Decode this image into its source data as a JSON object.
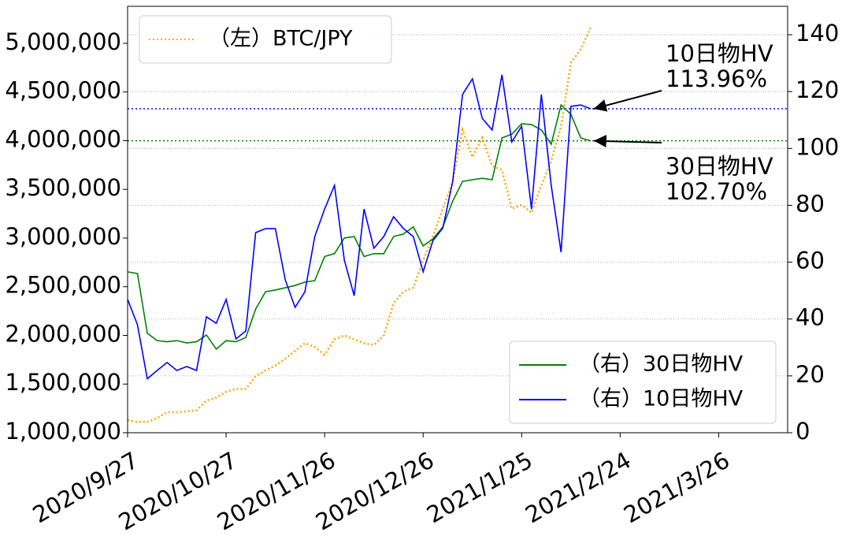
{
  "chart_data": {
    "type": "line",
    "x": [
      "2020/9/27",
      "2020/9/30",
      "2020/10/3",
      "2020/10/6",
      "2020/10/9",
      "2020/10/12",
      "2020/10/15",
      "2020/10/18",
      "2020/10/21",
      "2020/10/24",
      "2020/10/27",
      "2020/10/30",
      "2020/11/2",
      "2020/11/5",
      "2020/11/8",
      "2020/11/11",
      "2020/11/14",
      "2020/11/17",
      "2020/11/20",
      "2020/11/23",
      "2020/11/26",
      "2020/11/29",
      "2020/12/2",
      "2020/12/5",
      "2020/12/8",
      "2020/12/11",
      "2020/12/14",
      "2020/12/17",
      "2020/12/20",
      "2020/12/23",
      "2020/12/26",
      "2020/12/29",
      "2021/1/1",
      "2021/1/4",
      "2021/1/7",
      "2021/1/10",
      "2021/1/13",
      "2021/1/16",
      "2021/1/19",
      "2021/1/22",
      "2021/1/25",
      "2021/1/28",
      "2021/1/31",
      "2021/2/3",
      "2021/2/6",
      "2021/2/9",
      "2021/2/12",
      "2021/2/15"
    ],
    "series": [
      {
        "name": "（左）BTC/JPY",
        "color": "#ffa500",
        "style": "dotted",
        "axis": "y",
        "values": [
          1130000,
          1110000,
          1110000,
          1150000,
          1210000,
          1210000,
          1220000,
          1230000,
          1330000,
          1360000,
          1420000,
          1450000,
          1450000,
          1580000,
          1640000,
          1690000,
          1760000,
          1840000,
          1920000,
          1880000,
          1800000,
          1960000,
          2000000,
          1960000,
          1920000,
          1900000,
          2000000,
          2330000,
          2450000,
          2490000,
          2770000,
          3020000,
          3300000,
          3580000,
          4110000,
          3830000,
          4030000,
          3740000,
          3700000,
          3300000,
          3340000,
          3260000,
          3540000,
          3790000,
          4150000,
          4800000,
          4940000,
          5160000
        ]
      },
      {
        "name": "（右）30日物HV",
        "color": "#008000",
        "style": "solid",
        "axis": "y2",
        "values": [
          56.6,
          56,
          35,
          32.4,
          32,
          32.4,
          31.6,
          32,
          34.4,
          29.4,
          32.4,
          32,
          33.5,
          43.5,
          49.6,
          50.2,
          51,
          51.8,
          53,
          53.5,
          62,
          63,
          68.5,
          69,
          62,
          63,
          63,
          69,
          69.9,
          72.4,
          65.7,
          68.2,
          72.4,
          81.5,
          88.4,
          89,
          89.5,
          89,
          103.7,
          105,
          108.7,
          108.4,
          106.5,
          101.5,
          115.3,
          112,
          103.7,
          102.7
        ]
      },
      {
        "name": "（右）10日物HV",
        "color": "#0000ff",
        "style": "solid",
        "axis": "y2",
        "values": [
          46.9,
          38,
          19,
          21.9,
          24.7,
          21.9,
          23.3,
          21.9,
          40.8,
          38.5,
          46.9,
          33,
          35.8,
          70.4,
          71.8,
          71.8,
          53.8,
          44.1,
          49.6,
          69,
          78.7,
          87,
          60.7,
          48.2,
          78.7,
          64.9,
          69,
          76,
          71.8,
          69,
          56.6,
          67.6,
          72,
          88.4,
          119,
          124.5,
          110.6,
          106.5,
          125.9,
          102.3,
          107.8,
          78.7,
          119,
          87,
          63.5,
          114.8,
          115.3,
          113.96
        ]
      }
    ],
    "reference_lines": [
      {
        "value": 113.96,
        "color": "#0000ff",
        "axis": "y2"
      },
      {
        "value": 102.7,
        "color": "#008000",
        "axis": "y2"
      }
    ],
    "annotations": [
      {
        "lines": [
          "10日物HV",
          "113.96%"
        ],
        "series": 2
      },
      {
        "lines": [
          "30日物HV",
          "102.70%"
        ],
        "series": 1
      }
    ],
    "xlim": [
      "2020/9/27",
      "2021/4/16"
    ],
    "xticks": [
      "2020/9/27",
      "2020/10/27",
      "2020/11/26",
      "2020/12/26",
      "2021/1/25",
      "2021/2/24",
      "2021/3/26"
    ],
    "ylim": [
      1000000,
      5380000
    ],
    "yticks": [
      {
        "value": 1000000,
        "label": "1,000,000"
      },
      {
        "value": 1500000,
        "label": "1,500,000"
      },
      {
        "value": 2000000,
        "label": "2,000,000"
      },
      {
        "value": 2500000,
        "label": "2,500,000"
      },
      {
        "value": 3000000,
        "label": "3,000,000"
      },
      {
        "value": 3500000,
        "label": "3,500,000"
      },
      {
        "value": 4000000,
        "label": "4,000,000"
      },
      {
        "value": 4500000,
        "label": "4,500,000"
      },
      {
        "value": 5000000,
        "label": "5,000,000"
      }
    ],
    "y2lim": [
      0,
      150
    ],
    "y2ticks": [
      0,
      20,
      40,
      60,
      80,
      100,
      120,
      140
    ],
    "grid": true,
    "legend": {
      "y": "upper left",
      "y2": "lower right"
    }
  }
}
